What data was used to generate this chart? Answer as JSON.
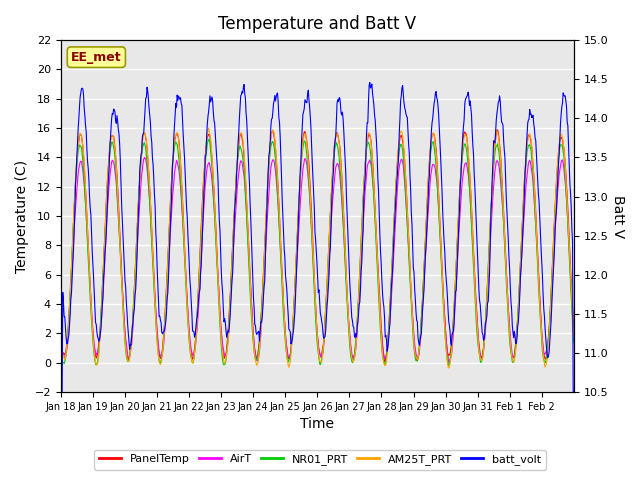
{
  "title": "Temperature and Batt V",
  "xlabel": "Time",
  "ylabel_left": "Temperature (C)",
  "ylabel_right": "Batt V",
  "ylim_left": [
    -2,
    22
  ],
  "ylim_right": [
    10.5,
    15.0
  ],
  "yticks_left": [
    -2,
    0,
    2,
    4,
    6,
    8,
    10,
    12,
    14,
    16,
    18,
    20,
    22
  ],
  "yticks_right": [
    10.5,
    11.0,
    11.5,
    12.0,
    12.5,
    13.0,
    13.5,
    14.0,
    14.5,
    15.0
  ],
  "xtick_labels": [
    "Jan 18",
    "Jan 19",
    "Jan 20",
    "Jan 21",
    "Jan 22",
    "Jan 23",
    "Jan 24",
    "Jan 25",
    "Jan 26",
    "Jan 27",
    "Jan 28",
    "Jan 29",
    "Jan 30",
    "Jan 31",
    "Feb 1",
    "Feb 2"
  ],
  "annotation_text": "EE_met",
  "annotation_color": "#8B0000",
  "annotation_bg": "#FFFF99",
  "bg_color": "#E8E8E8",
  "line_colors": {
    "PanelTemp": "#FF0000",
    "AirT": "#FF00FF",
    "NR01_PRT": "#00CC00",
    "AM25T_PRT": "#FFA500",
    "batt_volt": "#0000FF"
  },
  "legend_entries": [
    "PanelTemp",
    "AirT",
    "NR01_PRT",
    "AM25T_PRT",
    "batt_volt"
  ],
  "grid_color": "#FFFFFF",
  "title_fontsize": 12,
  "axis_fontsize": 10,
  "tick_fontsize": 8
}
